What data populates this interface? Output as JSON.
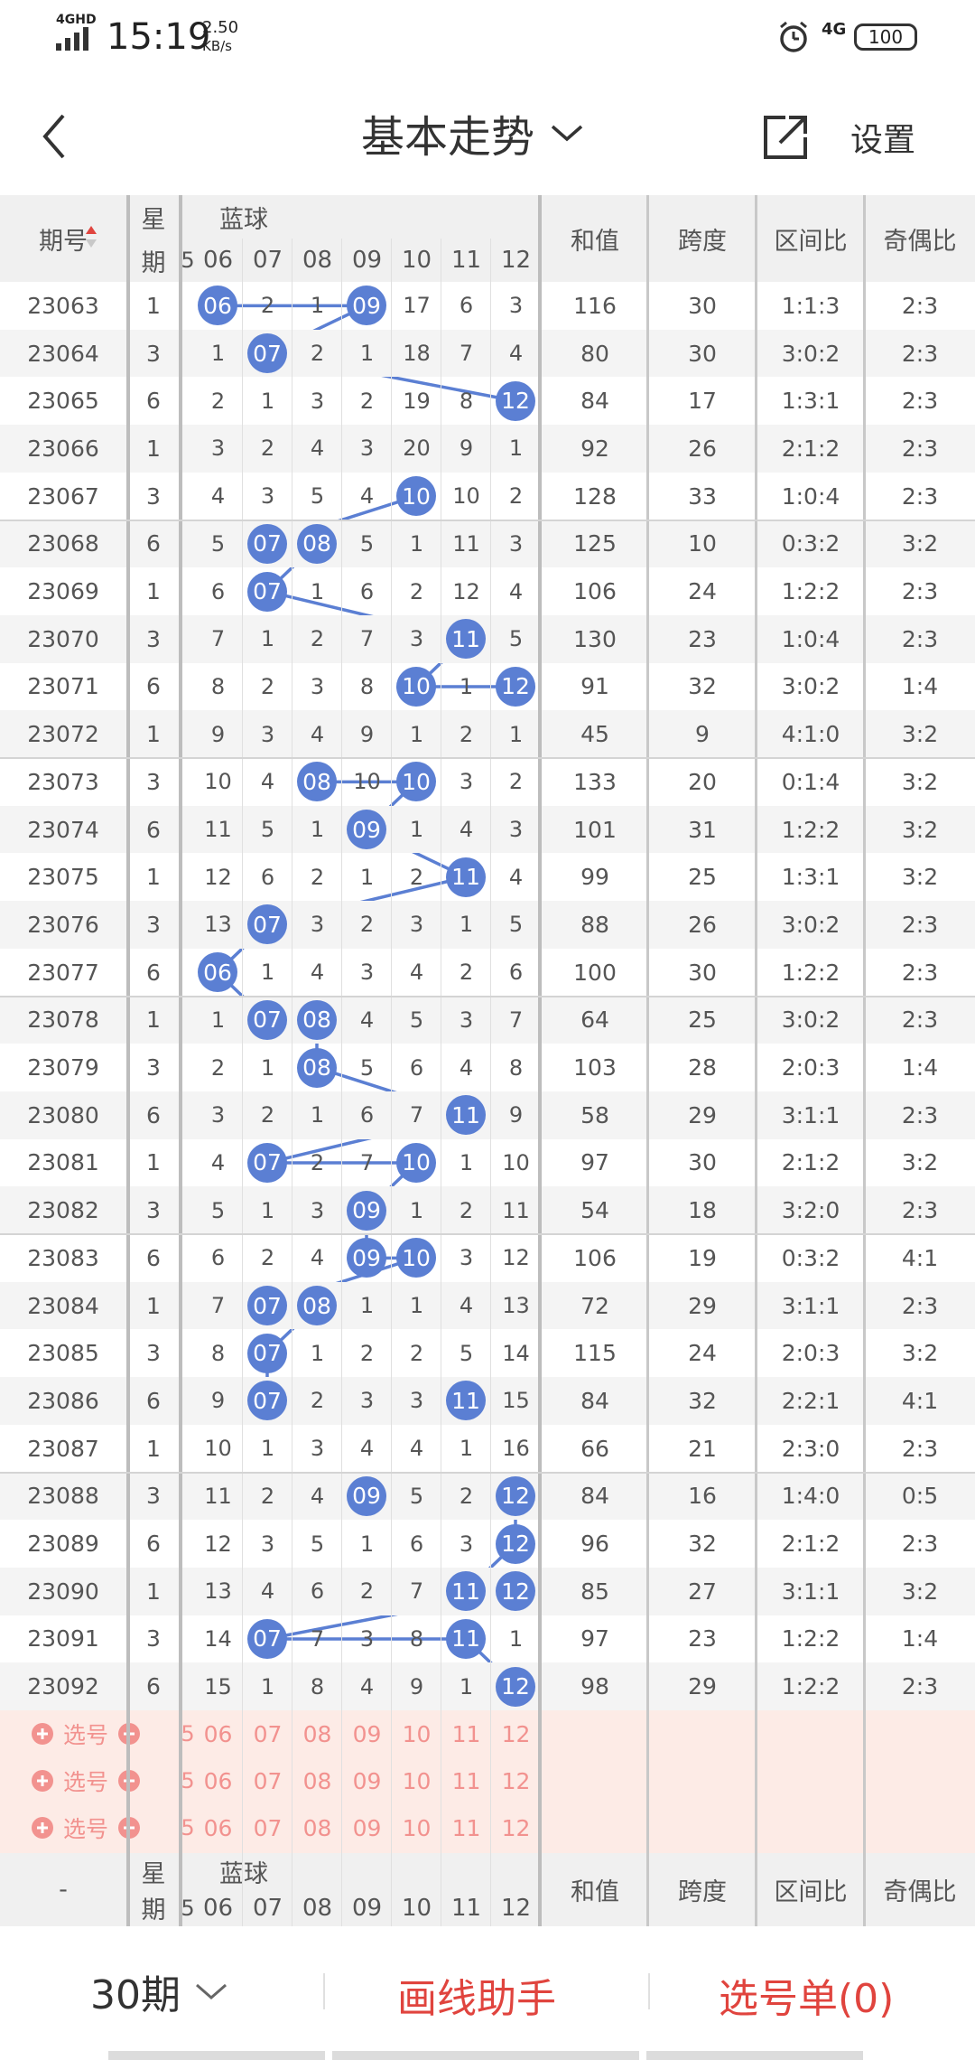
{
  "status_bar": {
    "network": "4GHD",
    "time": "15:19",
    "speed_value": "2.50",
    "speed_unit": "KB/s",
    "network2": "4G",
    "battery": "100"
  },
  "nav": {
    "title": "基本走势",
    "settings_label": "设置"
  },
  "header": {
    "period": "期号",
    "week_line1": "星",
    "week_line2": "期",
    "blue": "蓝球",
    "partial_col": "5",
    "blue_cols": [
      "06",
      "07",
      "08",
      "09",
      "10",
      "11",
      "12"
    ],
    "sum": "和值",
    "span": "跨度",
    "zone": "区间比",
    "oddeven": "奇偶比"
  },
  "rows": [
    {
      "p": "23063",
      "w": "1",
      "b": [
        "06",
        "2",
        "1",
        "09",
        "17",
        "6",
        "3"
      ],
      "hit": [
        0,
        3
      ],
      "sum": "116",
      "span": "30",
      "zone": "1:1:3",
      "oe": "2:3"
    },
    {
      "p": "23064",
      "w": "3",
      "b": [
        "1",
        "07",
        "2",
        "1",
        "18",
        "7",
        "4"
      ],
      "hit": [
        1
      ],
      "sum": "80",
      "span": "30",
      "zone": "3:0:2",
      "oe": "2:3"
    },
    {
      "p": "23065",
      "w": "6",
      "b": [
        "2",
        "1",
        "3",
        "2",
        "19",
        "8",
        "12"
      ],
      "hit": [
        6
      ],
      "sum": "84",
      "span": "17",
      "zone": "1:3:1",
      "oe": "2:3"
    },
    {
      "p": "23066",
      "w": "1",
      "b": [
        "3",
        "2",
        "4",
        "3",
        "20",
        "9",
        "1"
      ],
      "hit": [],
      "sum": "92",
      "span": "26",
      "zone": "2:1:2",
      "oe": "2:3"
    },
    {
      "p": "23067",
      "w": "3",
      "b": [
        "4",
        "3",
        "5",
        "4",
        "10",
        "10",
        "2"
      ],
      "hit": [
        4
      ],
      "sum": "128",
      "span": "33",
      "zone": "1:0:4",
      "oe": "2:3"
    },
    {
      "p": "23068",
      "w": "6",
      "b": [
        "5",
        "07",
        "08",
        "5",
        "1",
        "11",
        "3"
      ],
      "hit": [
        1,
        2
      ],
      "sum": "125",
      "span": "10",
      "zone": "0:3:2",
      "oe": "3:2"
    },
    {
      "p": "23069",
      "w": "1",
      "b": [
        "6",
        "07",
        "1",
        "6",
        "2",
        "12",
        "4"
      ],
      "hit": [
        1
      ],
      "sum": "106",
      "span": "24",
      "zone": "1:2:2",
      "oe": "2:3"
    },
    {
      "p": "23070",
      "w": "3",
      "b": [
        "7",
        "1",
        "2",
        "7",
        "3",
        "11",
        "5"
      ],
      "hit": [
        5
      ],
      "sum": "130",
      "span": "23",
      "zone": "1:0:4",
      "oe": "2:3"
    },
    {
      "p": "23071",
      "w": "6",
      "b": [
        "8",
        "2",
        "3",
        "8",
        "10",
        "1",
        "12"
      ],
      "hit": [
        4,
        6
      ],
      "sum": "91",
      "span": "32",
      "zone": "3:0:2",
      "oe": "1:4"
    },
    {
      "p": "23072",
      "w": "1",
      "b": [
        "9",
        "3",
        "4",
        "9",
        "1",
        "2",
        "1"
      ],
      "hit": [],
      "sum": "45",
      "span": "9",
      "zone": "4:1:0",
      "oe": "3:2"
    },
    {
      "p": "23073",
      "w": "3",
      "b": [
        "10",
        "4",
        "08",
        "10",
        "10",
        "3",
        "2"
      ],
      "hit": [
        2,
        4
      ],
      "sum": "133",
      "span": "20",
      "zone": "0:1:4",
      "oe": "3:2"
    },
    {
      "p": "23074",
      "w": "6",
      "b": [
        "11",
        "5",
        "1",
        "09",
        "1",
        "4",
        "3"
      ],
      "hit": [
        3
      ],
      "sum": "101",
      "span": "31",
      "zone": "1:2:2",
      "oe": "3:2"
    },
    {
      "p": "23075",
      "w": "1",
      "b": [
        "12",
        "6",
        "2",
        "1",
        "2",
        "11",
        "4"
      ],
      "hit": [
        5
      ],
      "sum": "99",
      "span": "25",
      "zone": "1:3:1",
      "oe": "3:2"
    },
    {
      "p": "23076",
      "w": "3",
      "b": [
        "13",
        "07",
        "3",
        "2",
        "3",
        "1",
        "5"
      ],
      "hit": [
        1
      ],
      "sum": "88",
      "span": "26",
      "zone": "3:0:2",
      "oe": "2:3"
    },
    {
      "p": "23077",
      "w": "6",
      "b": [
        "06",
        "1",
        "4",
        "3",
        "4",
        "2",
        "6"
      ],
      "hit": [
        0
      ],
      "sum": "100",
      "span": "30",
      "zone": "1:2:2",
      "oe": "2:3"
    },
    {
      "p": "23078",
      "w": "1",
      "b": [
        "1",
        "07",
        "08",
        "4",
        "5",
        "3",
        "7"
      ],
      "hit": [
        1,
        2
      ],
      "sum": "64",
      "span": "25",
      "zone": "3:0:2",
      "oe": "2:3"
    },
    {
      "p": "23079",
      "w": "3",
      "b": [
        "2",
        "1",
        "08",
        "5",
        "6",
        "4",
        "8"
      ],
      "hit": [
        2
      ],
      "sum": "103",
      "span": "28",
      "zone": "2:0:3",
      "oe": "1:4"
    },
    {
      "p": "23080",
      "w": "6",
      "b": [
        "3",
        "2",
        "1",
        "6",
        "7",
        "11",
        "9"
      ],
      "hit": [
        5
      ],
      "sum": "58",
      "span": "29",
      "zone": "3:1:1",
      "oe": "2:3"
    },
    {
      "p": "23081",
      "w": "1",
      "b": [
        "4",
        "07",
        "2",
        "7",
        "10",
        "1",
        "10"
      ],
      "hit": [
        1,
        4
      ],
      "sum": "97",
      "span": "30",
      "zone": "2:1:2",
      "oe": "3:2"
    },
    {
      "p": "23082",
      "w": "3",
      "b": [
        "5",
        "1",
        "3",
        "09",
        "1",
        "2",
        "11"
      ],
      "hit": [
        3
      ],
      "sum": "54",
      "span": "18",
      "zone": "3:2:0",
      "oe": "2:3"
    },
    {
      "p": "23083",
      "w": "6",
      "b": [
        "6",
        "2",
        "4",
        "09",
        "10",
        "3",
        "12"
      ],
      "hit": [
        3,
        4
      ],
      "sum": "106",
      "span": "19",
      "zone": "0:3:2",
      "oe": "4:1"
    },
    {
      "p": "23084",
      "w": "1",
      "b": [
        "7",
        "07",
        "08",
        "1",
        "1",
        "4",
        "13"
      ],
      "hit": [
        1,
        2
      ],
      "sum": "72",
      "span": "29",
      "zone": "3:1:1",
      "oe": "2:3"
    },
    {
      "p": "23085",
      "w": "3",
      "b": [
        "8",
        "07",
        "1",
        "2",
        "2",
        "5",
        "14"
      ],
      "hit": [
        1
      ],
      "sum": "115",
      "span": "24",
      "zone": "2:0:3",
      "oe": "3:2"
    },
    {
      "p": "23086",
      "w": "6",
      "b": [
        "9",
        "07",
        "2",
        "3",
        "3",
        "11",
        "15"
      ],
      "hit": [
        1,
        5
      ],
      "sum": "84",
      "span": "32",
      "zone": "2:2:1",
      "oe": "4:1"
    },
    {
      "p": "23087",
      "w": "1",
      "b": [
        "10",
        "1",
        "3",
        "4",
        "4",
        "1",
        "16"
      ],
      "hit": [],
      "sum": "66",
      "span": "21",
      "zone": "2:3:0",
      "oe": "2:3"
    },
    {
      "p": "23088",
      "w": "3",
      "b": [
        "11",
        "2",
        "4",
        "09",
        "5",
        "2",
        "12"
      ],
      "hit": [
        3,
        6
      ],
      "sum": "84",
      "span": "16",
      "zone": "1:4:0",
      "oe": "0:5"
    },
    {
      "p": "23089",
      "w": "6",
      "b": [
        "12",
        "3",
        "5",
        "1",
        "6",
        "3",
        "12"
      ],
      "hit": [
        6
      ],
      "sum": "96",
      "span": "32",
      "zone": "2:1:2",
      "oe": "2:3"
    },
    {
      "p": "23090",
      "w": "1",
      "b": [
        "13",
        "4",
        "6",
        "2",
        "7",
        "11",
        "12"
      ],
      "hit": [
        5,
        6
      ],
      "sum": "85",
      "span": "27",
      "zone": "3:1:1",
      "oe": "3:2"
    },
    {
      "p": "23091",
      "w": "3",
      "b": [
        "14",
        "07",
        "7",
        "3",
        "8",
        "11",
        "1"
      ],
      "hit": [
        1,
        5
      ],
      "sum": "97",
      "span": "23",
      "zone": "1:2:2",
      "oe": "1:4"
    },
    {
      "p": "23092",
      "w": "6",
      "b": [
        "15",
        "1",
        "8",
        "4",
        "9",
        "1",
        "12"
      ],
      "hit": [
        6
      ],
      "sum": "98",
      "span": "29",
      "zone": "1:2:2",
      "oe": "2:3"
    }
  ],
  "pick_label": "选号",
  "footer_header": {
    "period": "-"
  },
  "bottom": {
    "periods": "30期",
    "draw_helper": "画线助手",
    "pick_list": "选号单(0)"
  },
  "colors": {
    "ball": "#5b7fd3",
    "accent_red": "#e0443e",
    "pink_text": "#f2928f",
    "pick_bg": "#fdebe6",
    "alt_row": "#f4f4f4"
  }
}
